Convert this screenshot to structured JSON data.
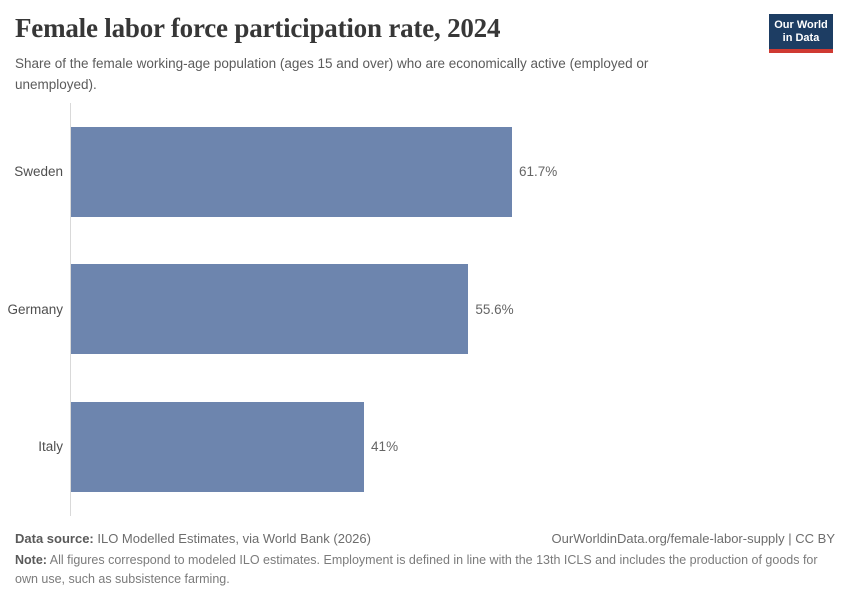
{
  "header": {
    "title": "Female labor force participation rate, 2024",
    "subtitle": "Share of the female working-age population (ages 15 and over) who are economically active (employed or unemployed).",
    "logo": {
      "line1": "Our World",
      "line2": "in Data"
    }
  },
  "chart_data": {
    "type": "bar",
    "orientation": "horizontal",
    "title": "Female labor force participation rate, 2024",
    "categories": [
      "Sweden",
      "Germany",
      "Italy"
    ],
    "values": [
      61.7,
      55.6,
      41
    ],
    "value_labels": [
      "61.7%",
      "55.6%",
      "41%"
    ],
    "unit": "%",
    "xlabel": "",
    "ylabel": "",
    "xlim": [
      0,
      61.7
    ],
    "grid": false,
    "legend": "none",
    "bar_color": "#6d85ae",
    "axis_color": "#d9d9d9"
  },
  "footer": {
    "data_source_label": "Data source:",
    "data_source_text": " ILO Modelled Estimates, via World Bank (2026)",
    "attribution": "OurWorldinData.org/female-labor-supply | CC BY",
    "note_label": "Note:",
    "note_text": " All figures correspond to modeled ILO estimates. Employment is defined in line with the 13th ICLS and includes the production of goods for own use, such as subsistence farming."
  }
}
